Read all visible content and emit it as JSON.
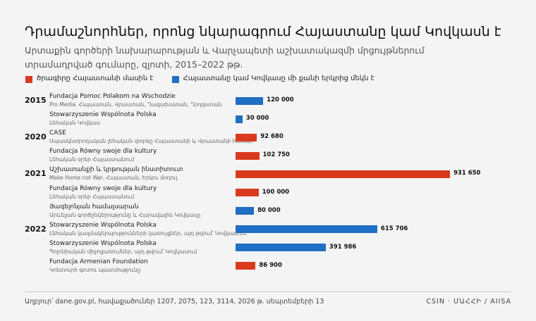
{
  "chart_data": {
    "type": "bar",
    "orientation": "horizontal",
    "title": "Դրամաշնորհներ, որոնց նկարագրում Հայաստանը կամ Կովկասն է",
    "subtitle": "Արտաքին գործերի նախարարության և Վարչապետի աշխատակազմի մրցույթներում տրամադրված գումարը, զլոտի, 2015–2022 թթ.",
    "years": [
      "2015",
      null,
      "2020",
      null,
      "2021",
      null,
      null,
      "2022",
      null,
      null
    ],
    "categories": [
      "Fundacja Pomoc Polakom na Wschodzie",
      "Stowarzyszenie Wspólnota Polska",
      "CASE",
      "Fundacja Równy swoje dla kultury",
      "Աշխատանքի և կրթության ինստիտուտ",
      "Fundacja Równy swoje dla kultury",
      "Յագելոնյան համալսարան",
      "Stowarzyszenie Wspólnota Polska",
      "Stowarzyszenie Wspólnota Polska",
      "Fundacja Armenian Foundation"
    ],
    "descriptions": [
      "Pro Media. Հայաստան, Վրաստան, Ղազախստան, Ղրղզստան",
      "Լեհական Կովկաս",
      "Սպասկնտրողական լեհական փորձը Հայաստանի և Վրաստանի համար",
      "Լեհական օրեր Հայաստանում",
      "Make Home not War, Հայաստան, Երկու մոդուլ",
      "Լեհական օրեր Հայաստանում",
      "Արևելյան գործընկերությունը և Հարավային Կովկասը",
      "Լեհական կազմակերպությունների կառույցներ, այդ թվում՝ Կովկասում",
      "Պոլոնիական միջոցառումներ, այդ թվում՝ Կովկասում",
      "Կոնտուրի գոտու պատմությունը"
    ],
    "series": [
      {
        "name": "ծրագիրը Հայաստանի մասին է",
        "color": "#d93a1e",
        "values": [
          null,
          null,
          92680,
          102750,
          931650,
          100000,
          null,
          null,
          null,
          86900
        ],
        "value_labels": [
          null,
          null,
          "92 680",
          "102 750",
          "931 650",
          "100 000",
          null,
          null,
          null,
          "86 900"
        ]
      },
      {
        "name": "Հայաստանը կամ Կովկասը մի քանի երկրից մեկն է",
        "color": "#1f6fc4",
        "values": [
          120000,
          30000,
          null,
          null,
          null,
          null,
          80000,
          615706,
          391986,
          null
        ],
        "value_labels": [
          "120 000",
          "30 000",
          null,
          null,
          null,
          null,
          "80 000",
          "615 706",
          "391 986",
          null
        ]
      }
    ],
    "xlim": [
      0,
      950000
    ],
    "source": "Աղբյուր՝ dane.gov.pl, հավաքածուներ 1207, 2075, 123, 3114, 2026 թ. սեպտեմբերի 13",
    "credit": "CSIN · ՄԱՀՀԻ / AIISA"
  }
}
